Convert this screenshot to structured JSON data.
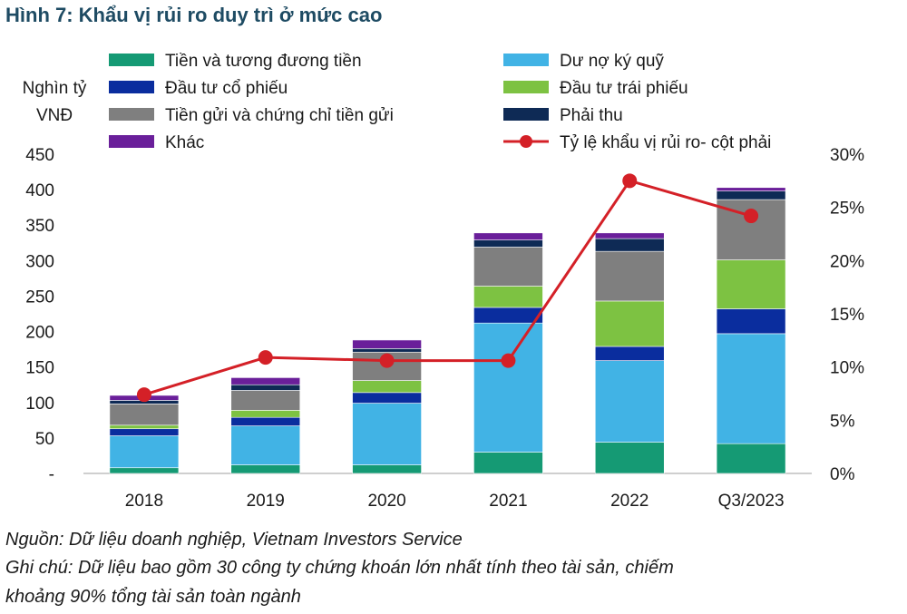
{
  "title": "Hình 7: Khẩu vị rủi ro duy trì ở mức cao",
  "chart_data": {
    "type": "bar",
    "stacked": true,
    "categories": [
      "2018",
      "2019",
      "2020",
      "2021",
      "2022",
      "Q3/2023"
    ],
    "y_left_label_line1": "Nghìn tỷ",
    "y_left_label_line2": "VNĐ",
    "y_left_ticks": [
      "-",
      "50",
      "100",
      "150",
      "200",
      "250",
      "300",
      "350",
      "400",
      "450"
    ],
    "ylim_left": [
      0,
      450
    ],
    "y_right_ticks": [
      "0%",
      "5%",
      "10%",
      "15%",
      "20%",
      "25%",
      "30%"
    ],
    "ylim_right": [
      0,
      30
    ],
    "series": [
      {
        "name": "Tiền và tương đương tiền",
        "color": "#159a74",
        "values": [
          8,
          12,
          12,
          30,
          44,
          42
        ]
      },
      {
        "name": "Dư nợ ký quỹ",
        "color": "#41b3e5",
        "values": [
          45,
          55,
          87,
          182,
          115,
          155
        ]
      },
      {
        "name": "Đầu tư cổ phiếu",
        "color": "#0a2d9e",
        "values": [
          10,
          12,
          15,
          22,
          20,
          35
        ]
      },
      {
        "name": "Đầu tư trái phiếu",
        "color": "#7dc242",
        "values": [
          5,
          10,
          17,
          30,
          64,
          69
        ]
      },
      {
        "name": "Tiền gửi và chứng chỉ tiền gửi",
        "color": "#7f7f7f",
        "values": [
          30,
          28,
          40,
          55,
          70,
          85
        ]
      },
      {
        "name": "Phải thu",
        "color": "#0e2a55",
        "values": [
          5,
          8,
          5,
          10,
          18,
          12
        ]
      },
      {
        "name": "Khác",
        "color": "#6a1f9a",
        "values": [
          7,
          10,
          12,
          10,
          8,
          5
        ]
      }
    ],
    "line_series": {
      "name": "Tỷ lệ khẩu vị rủi ro- cột phải",
      "color": "#d42027",
      "axis": "right",
      "values": [
        7.4,
        10.9,
        10.6,
        10.6,
        27.5,
        24.2
      ]
    },
    "legend_placement": "top"
  },
  "notes": {
    "source": "Nguồn: Dữ liệu doanh nghiệp, Vietnam Investors Service",
    "note_line1": "Ghi chú: Dữ liệu bao gồm 30 công ty chứng khoán lớn nhất tính theo tài sản, chiếm",
    "note_line2": "khoảng 90% tổng tài sản toàn ngành"
  }
}
